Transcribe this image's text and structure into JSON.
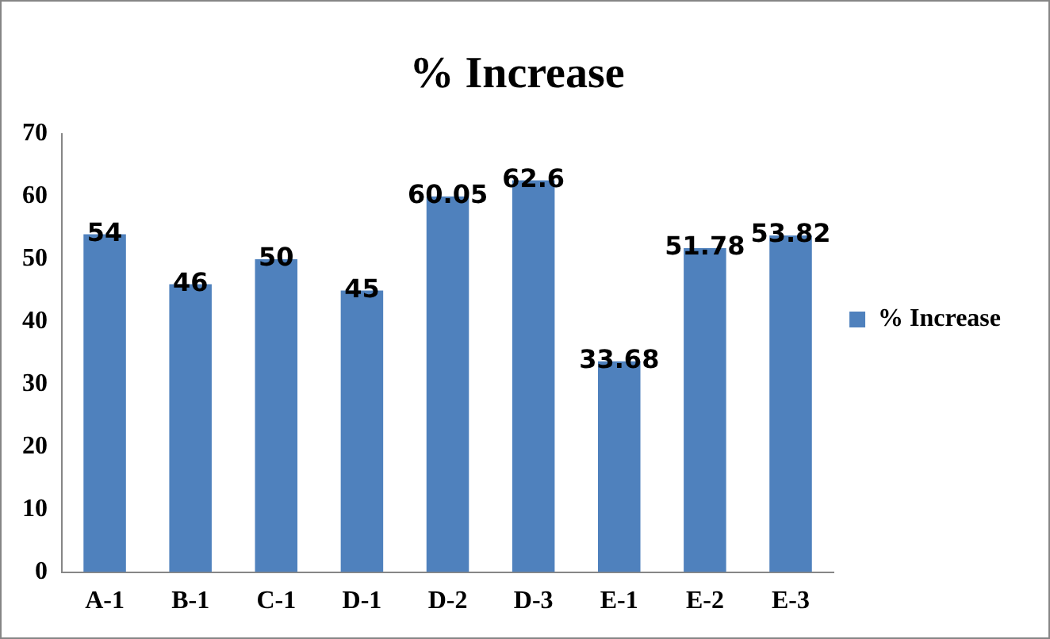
{
  "chart_data": {
    "type": "bar",
    "title": "% Increase",
    "categories": [
      "A-1",
      "B-1",
      "C-1",
      "D-1",
      "D-2",
      "D-3",
      "E-1",
      "E-2",
      "E-3"
    ],
    "series": [
      {
        "name": "% Increase",
        "color": "#4f81bd",
        "values": [
          54,
          46,
          50,
          45,
          60.05,
          62.6,
          33.68,
          51.78,
          53.82
        ]
      }
    ],
    "ylim": [
      0,
      70
    ],
    "yticks": [
      0,
      10,
      20,
      30,
      40,
      50,
      60,
      70
    ],
    "grid": false,
    "legend": "right",
    "data_labels": true
  }
}
